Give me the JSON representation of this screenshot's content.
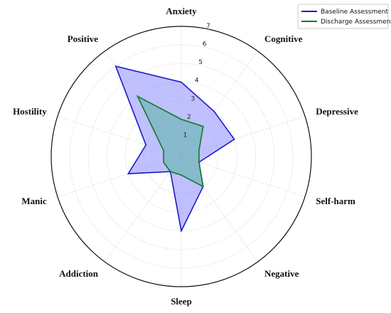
{
  "chart_data": {
    "type": "radar",
    "axes": [
      "Anxiety",
      "Cognitive",
      "Depressive",
      "Self-harm",
      "Negative",
      "Sleep",
      "Addiction",
      "Manic",
      "Hostility",
      "Positive"
    ],
    "rmax": 7,
    "ticks": [
      1,
      2,
      3,
      4,
      5,
      6,
      7
    ],
    "grid": true,
    "legend_position": "top-right",
    "series": [
      {
        "name": "Baseline Assessment",
        "color": "#1a1ac8",
        "fill": "#8c8cff",
        "values": [
          4.0,
          3.0,
          3.0,
          1.0,
          2.0,
          4.0,
          1.0,
          3.0,
          2.0,
          6.0
        ]
      },
      {
        "name": "Discharge Assessment",
        "color": "#117a2a",
        "fill": "#4db39a",
        "values": [
          2.0,
          2.0,
          1.0,
          1.0,
          2.0,
          1.0,
          1.0,
          1.0,
          1.0,
          4.0
        ]
      }
    ]
  }
}
